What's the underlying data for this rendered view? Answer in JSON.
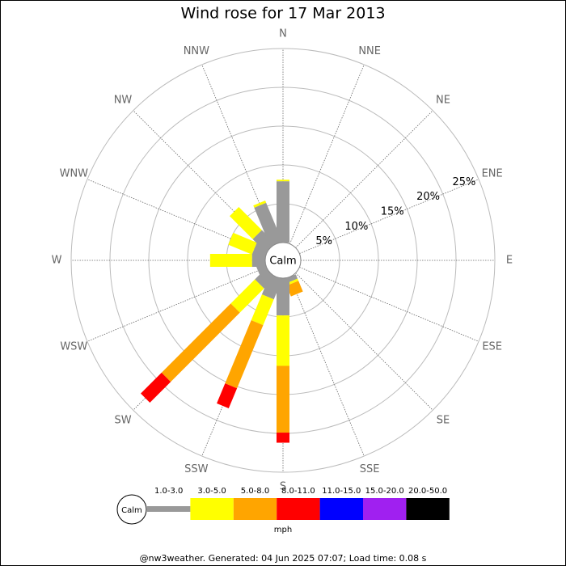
{
  "chart_data": {
    "type": "windrose",
    "title": "Wind rose for 17 Mar 2013",
    "categories": [
      "N",
      "NNE",
      "NE",
      "ENE",
      "E",
      "ESE",
      "SE",
      "SSE",
      "S",
      "SSW",
      "SW",
      "WSW",
      "W",
      "WNW",
      "NW",
      "NNW"
    ],
    "series": [
      {
        "name": "1.0-3.0",
        "color": "#999999",
        "values": [
          7.9,
          0,
          0,
          0,
          0,
          0,
          0,
          0.6,
          4.8,
          2.8,
          2.0,
          1.2,
          1.7,
          1.7,
          2.4,
          5.4
        ]
      },
      {
        "name": "3.0-5.0",
        "color": "#ffff00",
        "values": [
          0.2,
          0,
          0,
          0,
          0,
          0,
          0,
          0.3,
          6.5,
          3.6,
          4.4,
          0,
          5.4,
          3.3,
          4.2,
          0.3
        ]
      },
      {
        "name": "5.0-8.0",
        "color": "#ffa500",
        "values": [
          0,
          0,
          0,
          0,
          0,
          0,
          0,
          1.5,
          8.6,
          8.8,
          12.6,
          0,
          0,
          0,
          0,
          0
        ]
      },
      {
        "name": "8.0-11.0",
        "color": "#ff0000",
        "values": [
          0,
          0,
          0,
          0,
          0,
          0,
          0,
          0,
          1.3,
          2.8,
          3.8,
          0,
          0,
          0,
          0,
          0
        ]
      },
      {
        "name": "11.0-15.0",
        "color": "#0000ff",
        "values": [
          0,
          0,
          0,
          0,
          0,
          0,
          0,
          0,
          0,
          0,
          0,
          0,
          0,
          0,
          0,
          0
        ]
      },
      {
        "name": "15.0-20.0",
        "color": "#a020f0",
        "values": [
          0,
          0,
          0,
          0,
          0,
          0,
          0,
          0,
          0,
          0,
          0,
          0,
          0,
          0,
          0,
          0
        ]
      },
      {
        "name": "20.0-50.0",
        "color": "#000000",
        "values": [
          0,
          0,
          0,
          0,
          0,
          0,
          0,
          0,
          0,
          0,
          0,
          0,
          0,
          0,
          0,
          0
        ]
      }
    ],
    "rlim": [
      0,
      25
    ],
    "rticks": [
      {
        "value": 5,
        "label": "5%"
      },
      {
        "value": 10,
        "label": "10%"
      },
      {
        "value": 15,
        "label": "15%"
      },
      {
        "value": 20,
        "label": "20%"
      },
      {
        "value": 25,
        "label": "25%"
      }
    ],
    "calm_label": "Calm",
    "units": "mph",
    "footer": "@nw3weather. Generated: 04 Jun 2025 07:07; Load time: 0.08 s"
  }
}
